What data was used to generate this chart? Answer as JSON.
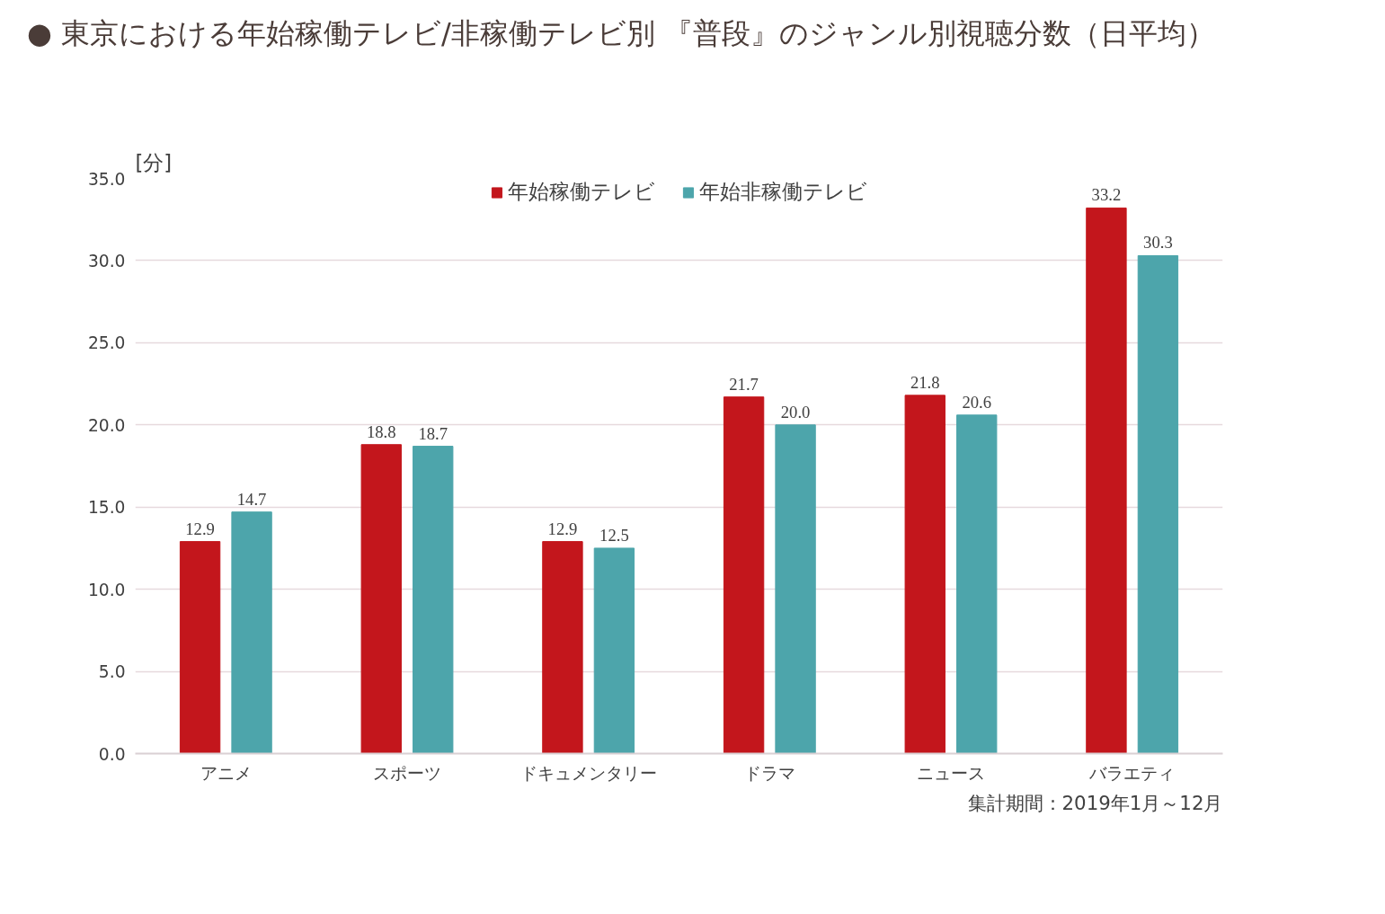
{
  "chart_data": {
    "type": "bar",
    "title": "● 東京における年始稼働テレビ/非稼働テレビ別 『普段』のジャンル別視聴分数（日平均）",
    "ylabel": "[分]",
    "categories": [
      "アニメ",
      "スポーツ",
      "ドキュメンタリー",
      "ドラマ",
      "ニュース",
      "バラエティ"
    ],
    "series": [
      {
        "name": "年始稼働テレビ",
        "color": "#c3161c",
        "values": [
          12.9,
          18.8,
          12.9,
          21.7,
          21.8,
          33.2
        ]
      },
      {
        "name": "年始非稼働テレビ",
        "color": "#4da5ab",
        "values": [
          14.7,
          18.7,
          12.5,
          20.0,
          20.6,
          30.3
        ]
      }
    ],
    "ylim": [
      0,
      35
    ],
    "yticks": [
      {
        "value": 0,
        "label": "0.0"
      },
      {
        "value": 5,
        "label": "5.0"
      },
      {
        "value": 10,
        "label": "10.0"
      },
      {
        "value": 15,
        "label": "15.0"
      },
      {
        "value": 20,
        "label": "20.0"
      },
      {
        "value": 25,
        "label": "25.0"
      },
      {
        "value": 30,
        "label": "30.0"
      },
      {
        "value": 35,
        "label": "35.0"
      }
    ],
    "value_labels": [
      [
        "12.9",
        "18.8",
        "12.9",
        "21.7",
        "21.8",
        "33.2"
      ],
      [
        "14.7",
        "18.7",
        "12.5",
        "20.0",
        "20.6",
        "30.3"
      ]
    ],
    "grid": "y",
    "legend": "top",
    "annotations": [
      "集計期間：2019年1月～12月"
    ]
  }
}
